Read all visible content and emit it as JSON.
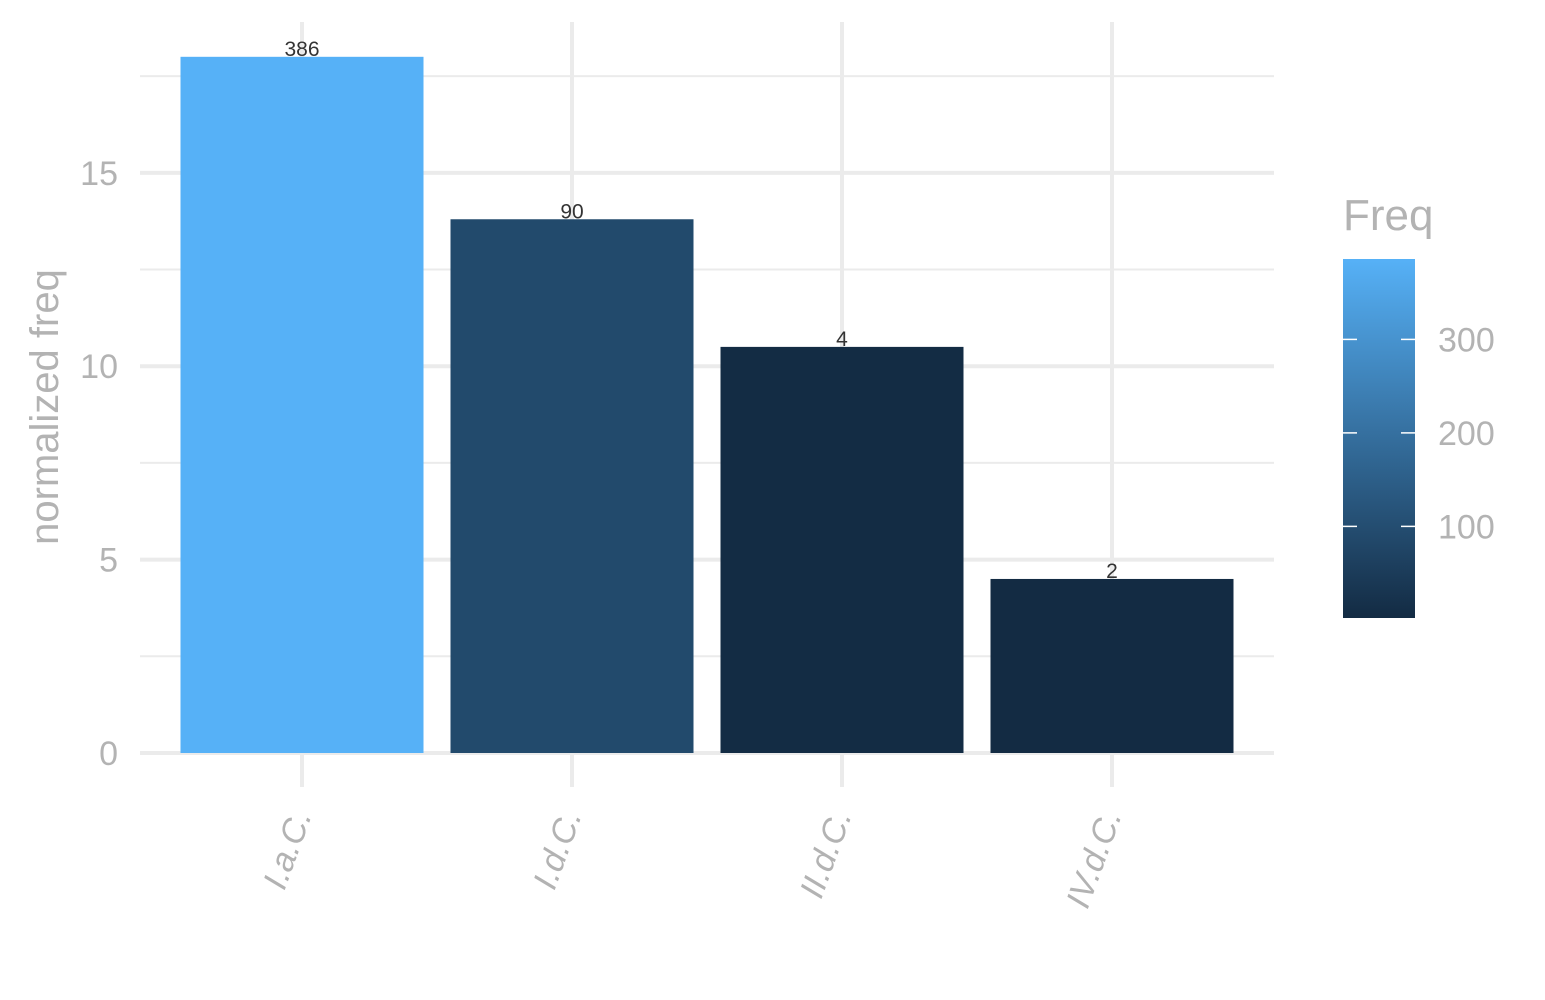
{
  "chart_data": {
    "type": "bar",
    "categories": [
      "I.a.C.",
      "I.d.C.",
      "II.d.C.",
      "IV.d.C."
    ],
    "values": [
      18.0,
      13.8,
      10.5,
      4.5
    ],
    "fill_values": [
      386,
      90,
      4,
      2
    ],
    "data_labels": [
      "386",
      "90",
      "4",
      "2"
    ],
    "title": "",
    "xlabel": "",
    "ylabel": "normalized freq",
    "ylim": [
      0,
      18.9
    ],
    "y_ticks": [
      0,
      5,
      10,
      15
    ],
    "y_tick_labels": [
      "0",
      "5",
      "10",
      "15"
    ],
    "grid": true,
    "legend": {
      "title": "Freq",
      "placement": "right",
      "type": "colorbar",
      "range": [
        2,
        386
      ],
      "ticks": [
        100,
        200,
        300
      ],
      "tick_labels": [
        "100",
        "200",
        "300"
      ],
      "low_color": "#132b43",
      "high_color": "#56b1f7"
    }
  }
}
